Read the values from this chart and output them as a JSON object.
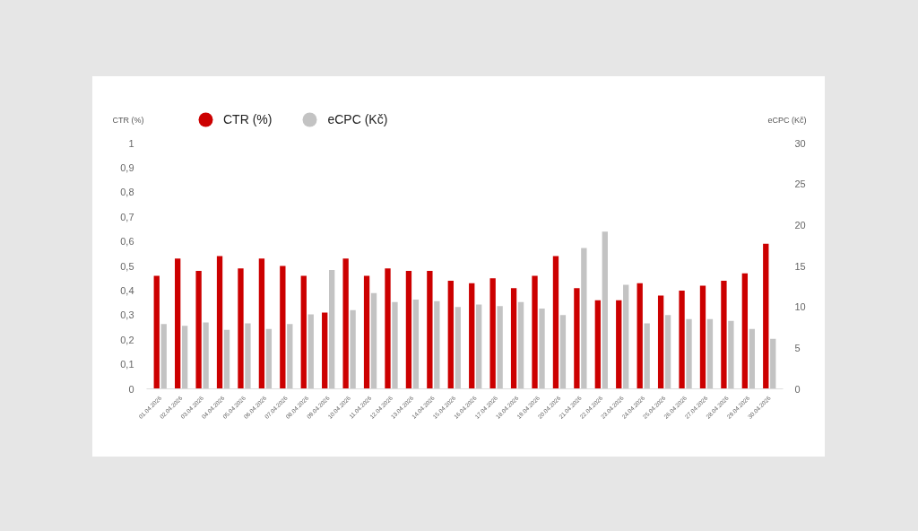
{
  "chart_data": {
    "type": "bar",
    "ylabel": "CTR (%)",
    "y2label": "eCPC (Kč)",
    "categories": [
      "01.04.2026",
      "02.04.2026",
      "03.04.2026",
      "04.04.2026",
      "05.04.2026",
      "06.04.2026",
      "07.04.2026",
      "08.04.2026",
      "09.04.2026",
      "10.04.2026",
      "11.04.2026",
      "12.04.2026",
      "13.04.2026",
      "14.04.2026",
      "15.04.2026",
      "16.04.2026",
      "17.04.2026",
      "18.04.2026",
      "19.04.2026",
      "20.04.2026",
      "21.04.2026",
      "22.04.2026",
      "23.04.2026",
      "24.04.2026",
      "25.04.2026",
      "26.04.2026",
      "27.04.2026",
      "28.04.2026",
      "29.04.2026",
      "30.04.2026"
    ],
    "series": [
      {
        "name": "CTR (%)",
        "color": "#cc0000",
        "values": [
          0.46,
          0.53,
          0.48,
          0.54,
          0.49,
          0.53,
          0.5,
          0.46,
          0.31,
          0.53,
          0.46,
          0.49,
          0.48,
          0.48,
          0.44,
          0.43,
          0.45,
          0.41,
          0.46,
          0.54,
          0.41,
          0.36,
          0.36,
          0.43,
          0.38,
          0.4,
          0.42,
          0.44,
          0.47,
          0.59
        ]
      },
      {
        "name": "eCPC (Kč)",
        "color": "#c3c3c3",
        "axis": "y2",
        "values": [
          7.9,
          7.7,
          8.1,
          7.2,
          8.0,
          7.3,
          7.9,
          9.1,
          14.5,
          9.6,
          11.7,
          10.6,
          10.9,
          10.7,
          10.0,
          10.3,
          10.1,
          10.6,
          9.8,
          9.0,
          17.2,
          19.2,
          12.7,
          8.0,
          9.0,
          8.5,
          8.5,
          8.3,
          7.3,
          6.1
        ]
      }
    ],
    "ylim": [
      0,
      1
    ],
    "yticks": [
      0,
      {
        "value": 0.1,
        "label": "0,1"
      },
      {
        "value": 0.2,
        "label": "0,2"
      },
      {
        "value": 0.3,
        "label": "0,3"
      },
      {
        "value": 0.4,
        "label": "0,4"
      },
      {
        "value": 0.5,
        "label": "0,5"
      },
      {
        "value": 0.6,
        "label": "0,6"
      },
      {
        "value": 0.7,
        "label": "0,7"
      },
      {
        "value": 0.8,
        "label": "0,8"
      },
      {
        "value": 0.9,
        "label": "0,9"
      },
      1
    ],
    "y2lim": [
      0,
      30
    ],
    "y2ticks": [
      0,
      5,
      10,
      15,
      20,
      25,
      30
    ],
    "legend": "top",
    "grid": false
  }
}
